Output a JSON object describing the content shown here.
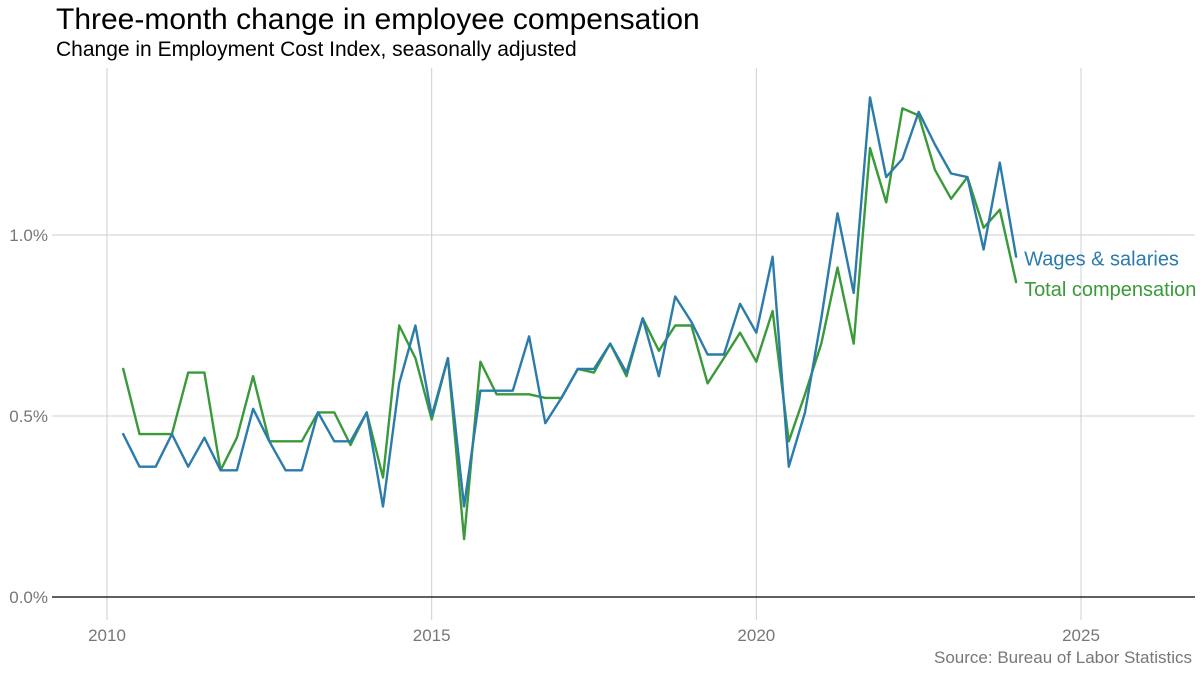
{
  "title": "Three-month change in employee compensation",
  "subtitle": "Change in Employment Cost Index, seasonally adjusted",
  "source": "Source: Bureau of Labor Statistics",
  "chart_data": {
    "type": "line",
    "title": "Three-month change in employee compensation",
    "subtitle": "Change in Employment Cost Index, seasonally adjusted",
    "xlabel": "",
    "ylabel": "",
    "xlim": [
      2010,
      2026.5
    ],
    "ylim": [
      0,
      1.42
    ],
    "x_ticks": [
      {
        "value": 2010,
        "label": "2010"
      },
      {
        "value": 2015,
        "label": "2015"
      },
      {
        "value": 2020,
        "label": "2020"
      },
      {
        "value": 2025,
        "label": "2025"
      }
    ],
    "y_ticks": [
      {
        "value": 0.0,
        "label": "0.0%"
      },
      {
        "value": 0.5,
        "label": "0.5%"
      },
      {
        "value": 1.0,
        "label": "1.0%"
      }
    ],
    "grid": true,
    "legend": "direct labels at line ends",
    "x": [
      2010.25,
      2010.5,
      2010.75,
      2011.0,
      2011.25,
      2011.5,
      2011.75,
      2012.0,
      2012.25,
      2012.5,
      2012.75,
      2013.0,
      2013.25,
      2013.5,
      2013.75,
      2014.0,
      2014.25,
      2014.5,
      2014.75,
      2015.0,
      2015.25,
      2015.5,
      2015.75,
      2016.0,
      2016.25,
      2016.5,
      2016.75,
      2017.0,
      2017.25,
      2017.5,
      2017.75,
      2018.0,
      2018.25,
      2018.5,
      2018.75,
      2019.0,
      2019.25,
      2019.5,
      2019.75,
      2020.0,
      2020.25,
      2020.5,
      2020.75,
      2021.0,
      2021.25,
      2021.5,
      2021.75,
      2022.0,
      2022.25,
      2022.5,
      2022.75,
      2023.0,
      2023.25,
      2023.5,
      2023.75,
      2024.0
    ],
    "series": [
      {
        "name": "Wages & salaries",
        "color": "#2b7bab",
        "values": [
          0.45,
          0.36,
          0.36,
          0.45,
          0.36,
          0.44,
          0.35,
          0.35,
          0.52,
          0.43,
          0.35,
          0.35,
          0.51,
          0.43,
          0.43,
          0.51,
          0.25,
          0.59,
          0.75,
          0.5,
          0.66,
          0.25,
          0.57,
          0.57,
          0.57,
          0.72,
          0.48,
          0.55,
          0.63,
          0.63,
          0.7,
          0.62,
          0.77,
          0.61,
          0.83,
          0.76,
          0.67,
          0.67,
          0.81,
          0.73,
          0.94,
          0.36,
          0.51,
          0.77,
          1.06,
          0.84,
          1.38,
          1.16,
          1.21,
          1.34,
          1.25,
          1.17,
          1.16,
          0.96,
          1.2,
          0.94
        ]
      },
      {
        "name": "Total compensation",
        "color": "#3a9a3a",
        "values": [
          0.63,
          0.45,
          0.45,
          0.45,
          0.62,
          0.62,
          0.35,
          0.44,
          0.61,
          0.43,
          0.43,
          0.43,
          0.51,
          0.51,
          0.42,
          0.51,
          0.33,
          0.75,
          0.66,
          0.49,
          0.66,
          0.16,
          0.65,
          0.56,
          0.56,
          0.56,
          0.55,
          0.55,
          0.63,
          0.62,
          0.7,
          0.61,
          0.77,
          0.68,
          0.75,
          0.75,
          0.59,
          0.66,
          0.73,
          0.65,
          0.79,
          0.43,
          0.56,
          0.7,
          0.91,
          0.7,
          1.24,
          1.09,
          1.35,
          1.33,
          1.18,
          1.1,
          1.16,
          1.02,
          1.07,
          0.87
        ]
      }
    ]
  }
}
